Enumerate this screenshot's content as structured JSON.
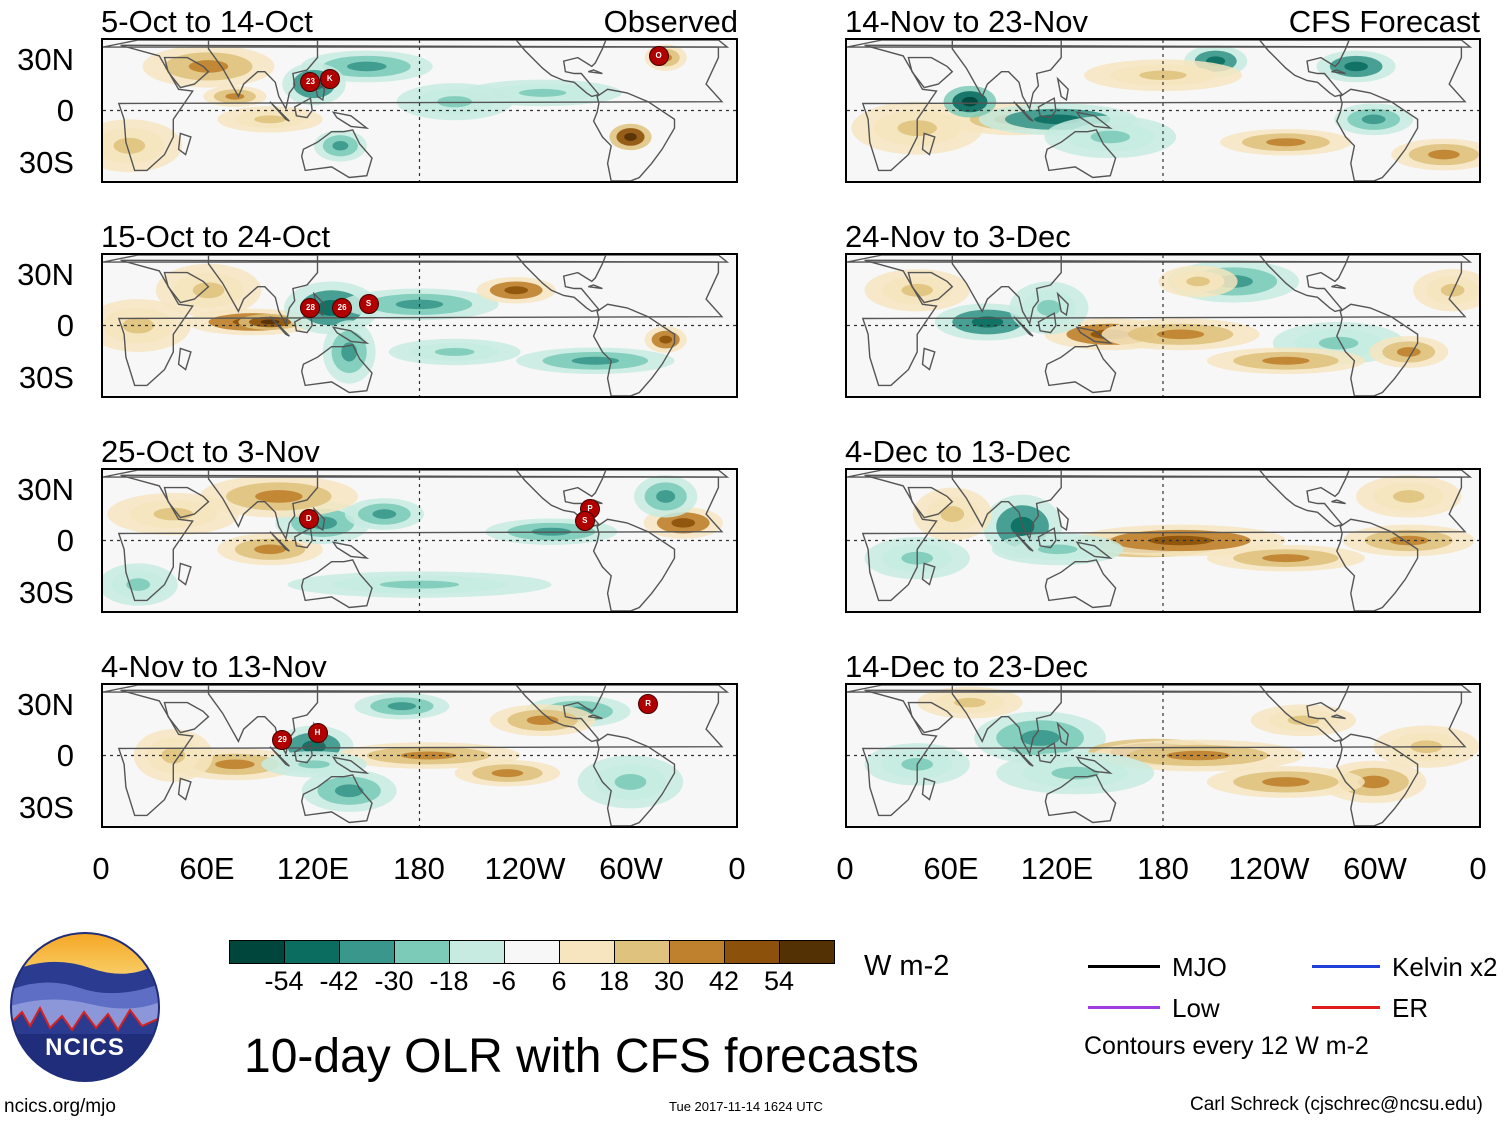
{
  "map": {
    "title": "10-day OLR with CFS forecasts",
    "observed_label": "Observed",
    "forecast_label": "CFS Forecast",
    "lat_labels": [
      "30N",
      "0",
      "30S"
    ],
    "lon_labels": [
      "0",
      "60E",
      "120E",
      "180",
      "120W",
      "60W",
      "0"
    ],
    "observed_panels": [
      {
        "title": "5-Oct to 14-Oct",
        "storms": [
          {
            "label": "23",
            "lon": 118,
            "lat": 16
          },
          {
            "label": "K",
            "lon": 129,
            "lat": 18
          },
          {
            "label": "O",
            "lon": -44,
            "lat": 31
          }
        ]
      },
      {
        "title": "15-Oct to 24-Oct",
        "storms": [
          {
            "label": "28",
            "lon": 118,
            "lat": 10
          },
          {
            "label": "26",
            "lon": 136,
            "lat": 10
          },
          {
            "label": "S",
            "lon": 151,
            "lat": 12
          }
        ]
      },
      {
        "title": "25-Oct to 3-Nov",
        "storms": [
          {
            "label": "D",
            "lon": 117,
            "lat": 12
          },
          {
            "label": "P",
            "lon": -83,
            "lat": 18
          },
          {
            "label": "S",
            "lon": -86,
            "lat": 11
          }
        ]
      },
      {
        "title": "4-Nov to 13-Nov",
        "storms": [
          {
            "label": "29",
            "lon": 102,
            "lat": 9
          },
          {
            "label": "H",
            "lon": 122,
            "lat": 13
          },
          {
            "label": "R",
            "lon": -50,
            "lat": 29
          }
        ]
      }
    ],
    "forecast_panels": [
      {
        "title": "14-Nov to 23-Nov"
      },
      {
        "title": "24-Nov to 3-Dec"
      },
      {
        "title": "4-Dec to 13-Dec"
      },
      {
        "title": "14-Dec to 23-Dec"
      }
    ],
    "colorbar": {
      "ticks": [
        "-54",
        "-42",
        "-30",
        "-18",
        "-6",
        "6",
        "18",
        "30",
        "42",
        "54"
      ],
      "colors": [
        "#00463c",
        "#0b6d60",
        "#3a978b",
        "#7ccbb9",
        "#c7ebe0",
        "#f7f7f7",
        "#f6e5bf",
        "#dfc27d",
        "#bf812d",
        "#8c510a",
        "#543005"
      ],
      "units": "W m-2"
    },
    "legend": {
      "items": [
        {
          "label": "MJO",
          "color": "#000000"
        },
        {
          "label": "Kelvin x2",
          "color": "#1f3fd6"
        },
        {
          "label": "Low",
          "color": "#9d3fe0"
        },
        {
          "label": "ER",
          "color": "#e01c1c"
        }
      ],
      "contour_note": "Contours every 12 W m-2"
    },
    "logo_text": "NCICS",
    "footer": {
      "url": "ncics.org/mjo",
      "timestamp": "Tue 2017-11-14 1624 UTC",
      "credit": "Carl Schreck (cjschrec@ncsu.edu)"
    }
  }
}
